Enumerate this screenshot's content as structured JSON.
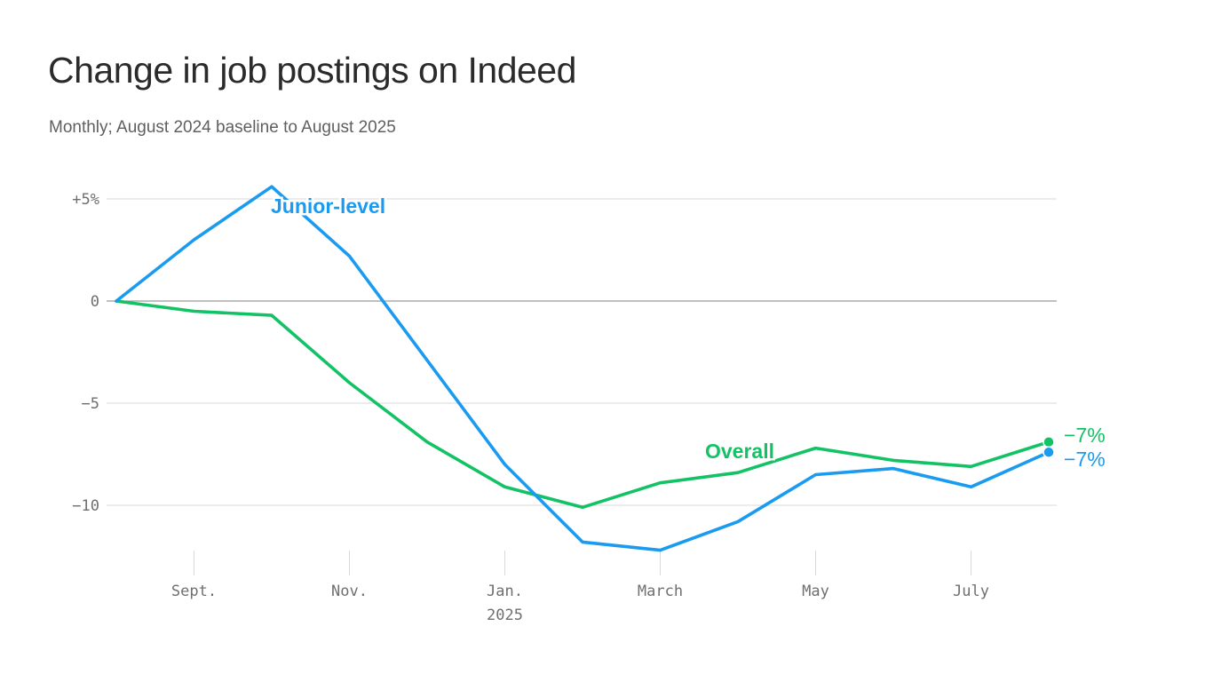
{
  "header": {
    "title": "Change in job postings on Indeed",
    "subtitle": "Monthly; August 2024 baseline to August 2025"
  },
  "colors": {
    "junior": "#1a9bf0",
    "overall": "#13c265",
    "grid": "#d9d9d9",
    "zero_line": "#9a9a9a",
    "tick_text": "#6f6f6f"
  },
  "chart_data": {
    "type": "line",
    "title": "Change in job postings on Indeed",
    "subtitle": "Monthly; August 2024 baseline to August 2025",
    "x": [
      "2024-08",
      "2024-09",
      "2024-10",
      "2024-11",
      "2024-12",
      "2025-01",
      "2025-02",
      "2025-03",
      "2025-04",
      "2025-05",
      "2025-06",
      "2025-07",
      "2025-08"
    ],
    "series": [
      {
        "name": "Junior-level",
        "color": "#1a9bf0",
        "values": [
          0,
          3.0,
          5.6,
          2.2,
          -2.9,
          -8.0,
          -11.8,
          -12.2,
          -10.8,
          -8.5,
          -8.2,
          -9.1,
          -7.4
        ],
        "end_label": "−7%"
      },
      {
        "name": "Overall",
        "color": "#13c265",
        "values": [
          0,
          -0.5,
          -0.7,
          -4.0,
          -6.9,
          -9.1,
          -10.1,
          -8.9,
          -8.4,
          -7.2,
          -7.8,
          -8.1,
          -6.9
        ],
        "end_label": "−7%"
      }
    ],
    "y_ticks": [
      {
        "value": 5,
        "label": "+5%"
      },
      {
        "value": 0,
        "label": "0"
      },
      {
        "value": -5,
        "label": "−5"
      },
      {
        "value": -10,
        "label": "−10"
      }
    ],
    "x_ticks": [
      {
        "x": "2024-09",
        "label": "Sept."
      },
      {
        "x": "2024-11",
        "label": "Nov."
      },
      {
        "x": "2025-01",
        "label": "Jan.",
        "sublabel": "2025"
      },
      {
        "x": "2025-03",
        "label": "March"
      },
      {
        "x": "2025-05",
        "label": "May"
      },
      {
        "x": "2025-07",
        "label": "July"
      }
    ],
    "ylim": [
      -12.2,
      5.6
    ],
    "grid": true,
    "legend": "inline labels"
  }
}
